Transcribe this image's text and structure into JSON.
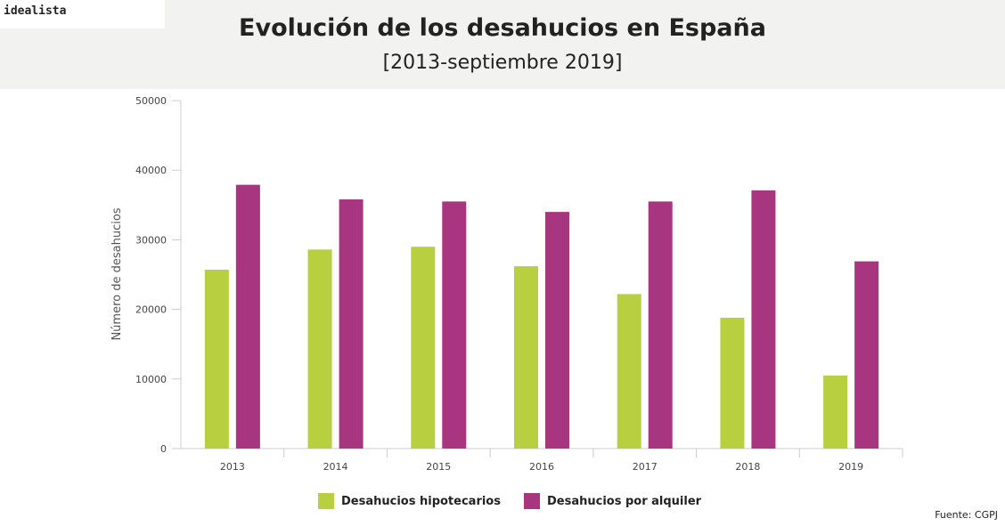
{
  "brand": "idealista",
  "chart_data": {
    "type": "bar",
    "title": "Evolución de los desahucios en España",
    "subtitle": "[2013-septiembre 2019]",
    "xlabel": "",
    "ylabel": "Número de desahucios",
    "ylim": [
      0,
      50000
    ],
    "yticks": [
      "0",
      "10000",
      "20000",
      "30000",
      "40000",
      "50000"
    ],
    "categories": [
      "2013",
      "2014",
      "2015",
      "2016",
      "2017",
      "2018",
      "2019"
    ],
    "series": [
      {
        "name": "Desahucios hipotecarios",
        "color": "#b8cf40",
        "values": [
          25700,
          28600,
          29000,
          26200,
          22200,
          18800,
          10500
        ]
      },
      {
        "name": "Desahucios por alquiler",
        "color": "#a8357f",
        "values": [
          37900,
          35800,
          35500,
          34000,
          35500,
          37100,
          26900
        ]
      }
    ],
    "legend": "bottom-center",
    "grid": false,
    "source": "Fuente: CGPJ"
  }
}
